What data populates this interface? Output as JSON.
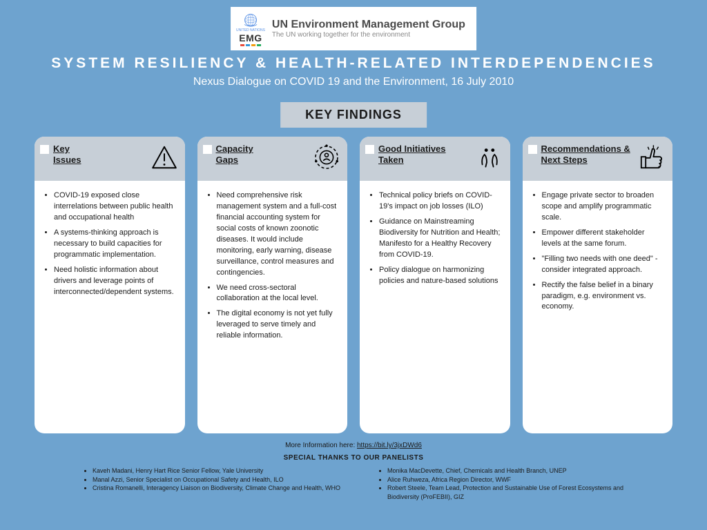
{
  "logo": {
    "emg": "EMG",
    "un_label": "UNITED NATIONS",
    "title": "UN Environment Management Group",
    "tagline": "The UN working together for the environment",
    "bar_colors": [
      "#e74c3c",
      "#3498db",
      "#f39c12",
      "#27ae60"
    ]
  },
  "title": "SYSTEM RESILIENCY & HEALTH-RELATED INTERDEPENDENCIES",
  "subtitle": "Nexus Dialogue on COVID 19 and the Environment, 16 July 2010",
  "key_findings_label": "KEY FINDINGS",
  "cards": [
    {
      "title": "Key Issues",
      "icon": "warning",
      "bullets": [
        "COVID-19 exposed close interrelations between public health and occupational health",
        "A systems-thinking approach is necessary to build capacities for programmatic implementation.",
        "Need holistic information about drivers and leverage points of interconnected/dependent systems."
      ]
    },
    {
      "title": "Capacity Gaps",
      "icon": "person-circle",
      "bullets": [
        "Need comprehensive risk management system and a full-cost financial accounting system for social costs of known zoonotic diseases. It would include monitoring, early warning, disease surveillance, control measures and contingencies.",
        "We need cross-sectoral collaboration at the local level.",
        "The digital economy is not yet fully leveraged to serve timely and reliable information."
      ]
    },
    {
      "title": "Good Initiatives Taken",
      "icon": "hands",
      "bullets": [
        "Technical policy briefs on COVID-19's impact on job losses (ILO)",
        "Guidance on Mainstreaming Biodiversity for Nutrition and Health; Manifesto for a Healthy Recovery from COVID-19.",
        "Policy dialogue on harmonizing policies and nature-based solutions"
      ]
    },
    {
      "title": "Recommendations & Next Steps",
      "icon": "thumbs-up",
      "bullets": [
        "Engage private sector to broaden scope and amplify programmatic scale.",
        "Empower different stakeholder levels at the same forum.",
        "\"Filling two needs with one deed\" - consider integrated approach.",
        "Rectify the false belief in a binary paradigm, e.g. environment vs. economy."
      ]
    }
  ],
  "more_info": {
    "label": "More Information here: ",
    "link": "https://bit.ly/3jxDWd6"
  },
  "thanks": "SPECIAL THANKS TO OUR PANELISTS",
  "panelists_left": [
    "Kaveh Madani, Henry Hart Rice Senior Fellow, Yale University",
    "Manal Azzi, Senior Specialist on Occupational Safety and Health, ILO",
    "Cristina Romanelli, Interagency Liaison on Biodiversity, Climate Change and Health, WHO"
  ],
  "panelists_right": [
    "Monika MacDevette, Chief, Chemicals and Health Branch, UNEP",
    "Alice Ruhweza, Africa Region Director, WWF",
    "Robert Steele, Team Lead, Protection and Sustainable Use of Forest Ecosystems and Biodiversity (ProFEBII), GIZ"
  ],
  "colors": {
    "bg": "#6ea3cf",
    "panel": "#c7cfd7",
    "card": "#ffffff",
    "text": "#1a1a1a"
  }
}
